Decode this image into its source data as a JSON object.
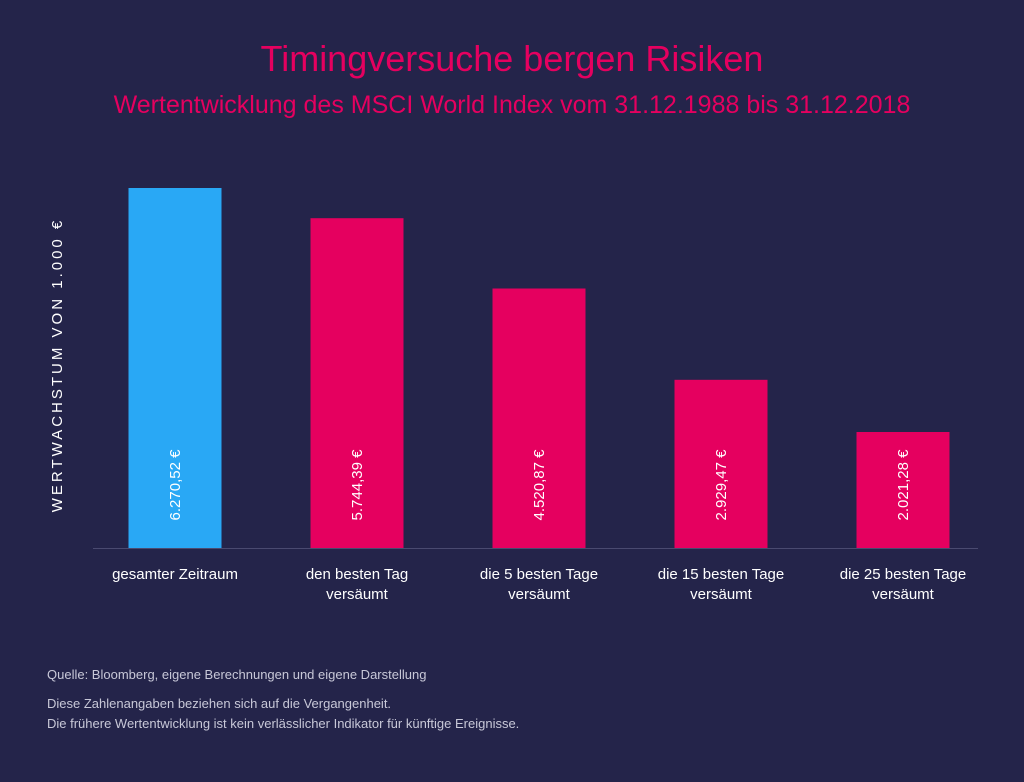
{
  "title": "Timingversuche bergen Risiken",
  "subtitle": "Wertentwicklung des MSCI World Index vom 31.12.1988 bis 31.12.2018",
  "chart_data": {
    "type": "bar",
    "ylabel": "WERTWACHSTUM VON 1.000 €",
    "xlabel": "",
    "ylim": [
      0,
      6270.52
    ],
    "grid": false,
    "categories": [
      [
        "gesamter Zeitraum"
      ],
      [
        "den besten Tag",
        "versäumt"
      ],
      [
        "die 5 besten Tage",
        "versäumt"
      ],
      [
        "die 15 besten Tage",
        "versäumt"
      ],
      [
        "die 25 besten Tage",
        "versäumt"
      ]
    ],
    "values": [
      6270.52,
      5744.39,
      4520.87,
      2929.47,
      2021.28
    ],
    "value_labels": [
      "6.270,52 €",
      "5.744,39 €",
      "4.520,87 €",
      "2.929,47 €",
      "2.021,28 €"
    ],
    "colors": [
      "#29a8f5",
      "#e5005f",
      "#e5005f",
      "#e5005f",
      "#e5005f"
    ]
  },
  "footer": {
    "source": "Quelle: Bloomberg, eigene Berechnungen und eigene Darstellung",
    "disclaimer_line1": "Diese Zahlenangaben beziehen sich auf die Vergangenheit.",
    "disclaimer_line2": "Die frühere Wertentwicklung ist kein verlässlicher Indikator für künftige Ereignisse."
  }
}
